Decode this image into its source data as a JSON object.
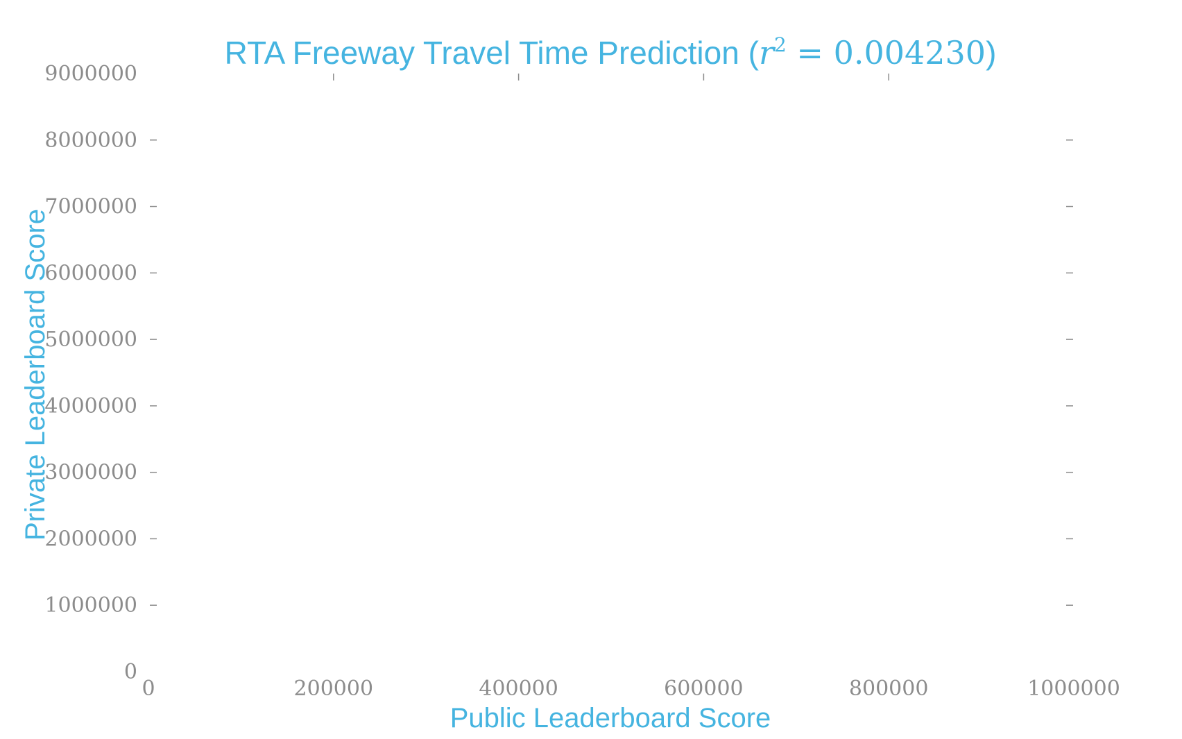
{
  "chart_data": {
    "type": "scatter",
    "title": "RTA Freeway Travel Time Prediction",
    "title_metric": "r",
    "title_exponent": "2",
    "title_operator": " = ",
    "title_value": "0.004230",
    "xlabel": "Public Leaderboard Score",
    "ylabel": "Private Leaderboard Score",
    "xlim": [
      0,
      1000000
    ],
    "ylim": [
      0,
      9000000
    ],
    "xticks": [
      0,
      200000,
      400000,
      600000,
      800000,
      1000000
    ],
    "yticks": [
      0,
      1000000,
      2000000,
      3000000,
      4000000,
      5000000,
      6000000,
      7000000,
      8000000,
      9000000
    ],
    "grid": false,
    "points": [],
    "colors": {
      "accent": "#45b4e0",
      "tick": "#8c8c8c"
    }
  }
}
